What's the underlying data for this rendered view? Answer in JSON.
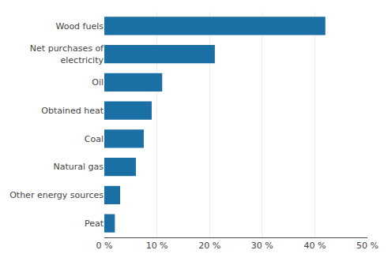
{
  "chart_data": {
    "type": "bar",
    "orientation": "horizontal",
    "categories": [
      "Peat",
      "Other energy sources",
      "Natural gas",
      "Coal",
      "Obtained heat",
      "Oil",
      "Net purchases of\nelectricity",
      "Wood fuels"
    ],
    "values": [
      2,
      3,
      6,
      7.5,
      9,
      11,
      21,
      42
    ],
    "color": "#1a6fa5",
    "xlim": [
      0,
      50
    ],
    "xticks": [
      {
        "value": 0,
        "label": "0 %"
      },
      {
        "value": 10,
        "label": "10 %"
      },
      {
        "value": 20,
        "label": "20 %"
      },
      {
        "value": 30,
        "label": "30 %"
      },
      {
        "value": 40,
        "label": "40 %"
      },
      {
        "value": 50,
        "label": "50 %"
      }
    ],
    "grid": true
  }
}
